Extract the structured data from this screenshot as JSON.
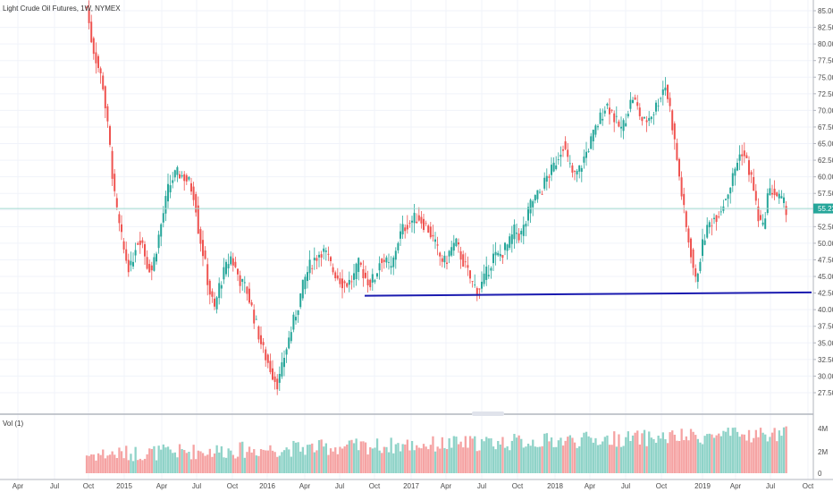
{
  "header": {
    "title": "Light Crude Oil Futures, 1W, NYMEX",
    "vol_label": "Vol (1)"
  },
  "current_price": "55.23",
  "colors": {
    "up": "#26a69a",
    "down": "#ef5350",
    "vol_up": "#8fd3c8",
    "vol_down": "#f5a3a3",
    "support_line": "#1b1bb0",
    "price_line": "#9fd9cf",
    "grid": "#f0f3fa"
  },
  "chart_data": {
    "type": "candlestick",
    "title": "Light Crude Oil Futures, 1W, NYMEX",
    "y_ticks": [
      "85.00",
      "82.50",
      "80.00",
      "77.50",
      "75.00",
      "72.50",
      "70.00",
      "67.50",
      "65.00",
      "62.50",
      "60.00",
      "57.50",
      "55.00",
      "52.50",
      "50.00",
      "47.50",
      "45.00",
      "42.50",
      "40.00",
      "37.50",
      "35.00",
      "32.50",
      "30.00",
      "27.50"
    ],
    "x_ticks": [
      "Apr",
      "Jul",
      "Oct",
      "2015",
      "Apr",
      "Jul",
      "Oct",
      "2016",
      "Apr",
      "Jul",
      "Oct",
      "2017",
      "Apr",
      "Jul",
      "Oct",
      "2018",
      "Apr",
      "Jul",
      "Oct",
      "2019",
      "Apr",
      "Jul",
      "Oct"
    ],
    "ylim": [
      25.5,
      86.5
    ],
    "current_price": 55.23,
    "vol_ticks": [
      "4M",
      "2M",
      "0"
    ],
    "vol_max": 5,
    "price_path": [
      [
        97,
        85.5
      ],
      [
        103,
        80
      ],
      [
        109,
        77
      ],
      [
        115,
        74
      ],
      [
        120,
        68
      ],
      [
        124,
        63
      ],
      [
        128,
        57
      ],
      [
        134,
        52
      ],
      [
        140,
        48
      ],
      [
        146,
        46
      ],
      [
        152,
        50
      ],
      [
        158,
        51
      ],
      [
        164,
        47
      ],
      [
        170,
        46
      ],
      [
        176,
        50
      ],
      [
        182,
        54
      ],
      [
        188,
        58
      ],
      [
        194,
        60
      ],
      [
        200,
        60.5
      ],
      [
        206,
        60
      ],
      [
        212,
        59
      ],
      [
        218,
        57
      ],
      [
        222,
        52
      ],
      [
        228,
        48
      ],
      [
        234,
        43
      ],
      [
        240,
        40
      ],
      [
        246,
        44
      ],
      [
        252,
        46
      ],
      [
        258,
        48
      ],
      [
        264,
        46
      ],
      [
        270,
        44
      ],
      [
        276,
        43
      ],
      [
        282,
        40
      ],
      [
        288,
        37
      ],
      [
        294,
        34
      ],
      [
        300,
        32
      ],
      [
        306,
        30
      ],
      [
        310,
        29
      ],
      [
        314,
        30
      ],
      [
        318,
        33
      ],
      [
        324,
        36
      ],
      [
        330,
        39
      ],
      [
        336,
        42
      ],
      [
        342,
        45
      ],
      [
        348,
        47
      ],
      [
        354,
        48
      ],
      [
        360,
        49
      ],
      [
        366,
        48
      ],
      [
        372,
        46
      ],
      [
        378,
        45
      ],
      [
        384,
        44
      ],
      [
        390,
        44
      ],
      [
        396,
        45
      ],
      [
        402,
        47
      ],
      [
        408,
        45
      ],
      [
        414,
        44
      ],
      [
        420,
        45
      ],
      [
        426,
        48
      ],
      [
        432,
        47
      ],
      [
        438,
        46
      ],
      [
        444,
        50
      ],
      [
        450,
        52
      ],
      [
        456,
        53
      ],
      [
        462,
        53.5
      ],
      [
        468,
        54
      ],
      [
        474,
        53
      ],
      [
        480,
        52
      ],
      [
        486,
        50
      ],
      [
        492,
        48
      ],
      [
        498,
        47
      ],
      [
        504,
        49
      ],
      [
        510,
        50
      ],
      [
        516,
        48
      ],
      [
        522,
        46
      ],
      [
        528,
        44
      ],
      [
        534,
        43
      ],
      [
        540,
        44
      ],
      [
        546,
        46
      ],
      [
        552,
        48
      ],
      [
        558,
        48
      ],
      [
        564,
        49
      ],
      [
        570,
        50
      ],
      [
        576,
        52
      ],
      [
        582,
        51
      ],
      [
        588,
        53
      ],
      [
        594,
        56
      ],
      [
        600,
        57
      ],
      [
        606,
        58
      ],
      [
        612,
        60
      ],
      [
        618,
        61
      ],
      [
        624,
        63
      ],
      [
        630,
        65
      ],
      [
        636,
        62
      ],
      [
        642,
        60
      ],
      [
        648,
        61
      ],
      [
        654,
        63
      ],
      [
        660,
        65
      ],
      [
        666,
        67
      ],
      [
        672,
        69
      ],
      [
        678,
        71
      ],
      [
        684,
        70
      ],
      [
        690,
        68
      ],
      [
        696,
        67
      ],
      [
        702,
        70
      ],
      [
        708,
        72
      ],
      [
        714,
        70
      ],
      [
        720,
        68
      ],
      [
        726,
        69
      ],
      [
        732,
        70
      ],
      [
        738,
        72
      ],
      [
        744,
        74
      ],
      [
        750,
        70
      ],
      [
        756,
        64
      ],
      [
        762,
        58
      ],
      [
        768,
        52
      ],
      [
        774,
        48
      ],
      [
        778,
        44
      ],
      [
        782,
        47
      ],
      [
        788,
        51
      ],
      [
        794,
        53
      ],
      [
        800,
        54
      ],
      [
        806,
        55
      ],
      [
        812,
        57
      ],
      [
        818,
        59
      ],
      [
        824,
        62
      ],
      [
        830,
        64
      ],
      [
        836,
        62
      ],
      [
        842,
        59
      ],
      [
        848,
        54
      ],
      [
        854,
        52
      ],
      [
        858,
        57
      ],
      [
        864,
        58
      ],
      [
        870,
        57
      ],
      [
        876,
        56
      ],
      [
        880,
        55.2
      ]
    ],
    "support_line": {
      "start": [
        408,
        42.1
      ],
      "end": [
        908,
        42.6
      ]
    },
    "volume_seed": 7
  }
}
